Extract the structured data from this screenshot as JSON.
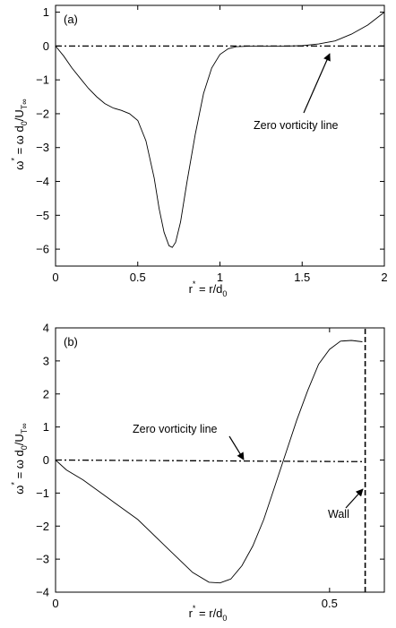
{
  "chart_data": [
    {
      "type": "line",
      "panel_label": "(a)",
      "xlabel": "r* = r/d0",
      "ylabel": "ω* = ω d0/UT∞",
      "xlim": [
        0,
        2
      ],
      "ylim": [
        -6.5,
        1.2
      ],
      "xticks": [
        0,
        0.5,
        1,
        1.5,
        2
      ],
      "xtick_labels": [
        "0",
        "0.5",
        "1",
        "1.5",
        "2"
      ],
      "yticks": [
        1,
        0,
        -1,
        -2,
        -3,
        -4,
        -5,
        -6
      ],
      "ytick_labels": [
        "1",
        "0",
        "−1",
        "−2",
        "−3",
        "−4",
        "−5",
        "−6"
      ],
      "series": [
        {
          "style": "solid",
          "x": [
            0,
            0.05,
            0.1,
            0.15,
            0.2,
            0.25,
            0.3,
            0.35,
            0.4,
            0.45,
            0.5,
            0.55,
            0.6,
            0.63,
            0.66,
            0.69,
            0.71,
            0.73,
            0.76,
            0.8,
            0.85,
            0.9,
            0.95,
            1.0,
            1.05,
            1.1,
            1.2,
            1.3,
            1.4,
            1.5,
            1.6,
            1.7,
            1.8,
            1.9,
            2.0
          ],
          "y": [
            0,
            -0.3,
            -0.65,
            -0.95,
            -1.25,
            -1.5,
            -1.7,
            -1.83,
            -1.9,
            -2.0,
            -2.2,
            -2.8,
            -3.9,
            -4.8,
            -5.5,
            -5.9,
            -5.95,
            -5.8,
            -5.2,
            -4.0,
            -2.6,
            -1.4,
            -0.65,
            -0.25,
            -0.08,
            -0.02,
            0,
            0,
            0,
            0.01,
            0.06,
            0.15,
            0.35,
            0.62,
            1.0
          ]
        },
        {
          "style": "dash-dot",
          "x": [
            0,
            2
          ],
          "y": [
            0,
            0
          ]
        }
      ],
      "annotations": [
        {
          "text": "Zero vorticity line",
          "at": [
            1.68,
            0.0
          ],
          "text_pos": [
            1.75,
            -1.2
          ]
        }
      ]
    },
    {
      "type": "line",
      "panel_label": "(b)",
      "xlabel": "r* = r/d0",
      "ylabel": "ω* = ω d0/UT∞",
      "xlim": [
        0,
        0.6
      ],
      "ylim": [
        -4,
        4
      ],
      "xticks": [
        0,
        0.5
      ],
      "xtick_labels": [
        "0",
        "0.5"
      ],
      "yticks": [
        4,
        3,
        2,
        1,
        0,
        -1,
        -2,
        -3,
        -4
      ],
      "ytick_labels": [
        "4",
        "3",
        "2",
        "1",
        "0",
        "−1",
        "−2",
        "−3",
        "−4"
      ],
      "series": [
        {
          "style": "solid",
          "x": [
            0,
            0.02,
            0.05,
            0.1,
            0.15,
            0.2,
            0.25,
            0.28,
            0.3,
            0.32,
            0.34,
            0.36,
            0.38,
            0.4,
            0.42,
            0.44,
            0.46,
            0.48,
            0.5,
            0.52,
            0.54,
            0.56
          ],
          "y": [
            0,
            -0.3,
            -0.6,
            -1.2,
            -1.8,
            -2.6,
            -3.4,
            -3.7,
            -3.72,
            -3.6,
            -3.2,
            -2.6,
            -1.8,
            -0.8,
            0.2,
            1.2,
            2.1,
            2.9,
            3.35,
            3.6,
            3.62,
            3.58
          ]
        },
        {
          "style": "dash-dot",
          "x": [
            0,
            0.56
          ],
          "y": [
            0,
            -0.05
          ]
        },
        {
          "style": "dashed",
          "x": [
            0.565,
            0.565
          ],
          "y": [
            -4,
            4
          ]
        }
      ],
      "annotations": [
        {
          "text": "Zero vorticity line",
          "at": [
            0.3,
            0.0
          ],
          "text_pos": [
            0.18,
            1.1
          ]
        },
        {
          "text": "Wall",
          "at": [
            0.565,
            -0.9
          ],
          "text_pos": [
            0.5,
            -1.9
          ]
        }
      ]
    }
  ]
}
